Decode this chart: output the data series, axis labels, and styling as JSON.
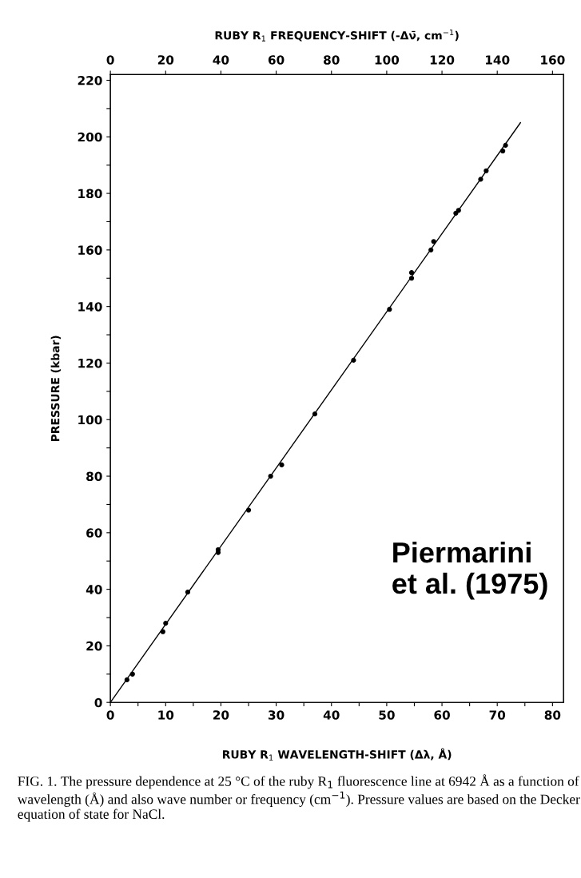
{
  "chart_data": {
    "type": "scatter",
    "xlabel": "RUBY R$_{1}$ WAVELENGTH-SHIFT (Δλ, Å)",
    "x2label": "RUBY R$_{1}$ FREQUENCY-SHIFT (-Δν̄, cm$^{−1}$)",
    "ylabel": "PRESSURE (kbar)",
    "xlim": [
      0,
      82
    ],
    "x2lim": [
      0,
      164
    ],
    "ylim": [
      0,
      222
    ],
    "xticks": [
      0,
      {
        "value": 5,
        "label": null
      },
      10,
      {
        "value": 15,
        "label": null
      },
      20,
      {
        "value": 25,
        "label": null
      },
      30,
      {
        "value": 35,
        "label": null
      },
      40,
      {
        "value": 45,
        "label": null
      },
      50,
      {
        "value": 55,
        "label": null
      },
      60,
      {
        "value": 65,
        "label": null
      },
      70,
      {
        "value": 75,
        "label": null
      },
      80
    ],
    "x2ticks": [
      0,
      20,
      40,
      60,
      80,
      100,
      120,
      140,
      160
    ],
    "yticks": [
      0,
      {
        "value": 10,
        "label": null
      },
      20,
      {
        "value": 30,
        "label": null
      },
      40,
      {
        "value": 50,
        "label": null
      },
      60,
      {
        "value": 70,
        "label": null
      },
      80,
      {
        "value": 90,
        "label": null
      },
      100,
      {
        "value": 110,
        "label": null
      },
      120,
      {
        "value": 130,
        "label": null
      },
      140,
      {
        "value": 150,
        "label": null
      },
      160,
      {
        "value": 170,
        "label": null
      },
      180,
      {
        "value": 190,
        "label": null
      },
      200,
      {
        "value": 210,
        "label": null
      },
      220
    ],
    "marker": "circle",
    "grid": false,
    "legend": false,
    "series": [
      {
        "color": "#000000",
        "x": [
          3,
          4,
          9.5,
          10,
          14,
          19.5,
          19.5,
          25,
          29,
          31,
          37,
          44,
          50.5,
          54.5,
          54.5,
          58,
          58.5,
          62.5,
          63,
          67,
          68,
          71,
          71.5
        ],
        "values": [
          8,
          10,
          25,
          28,
          39,
          53,
          54,
          68,
          80,
          84,
          102,
          121,
          139,
          150,
          152,
          160,
          163,
          173,
          174,
          185,
          188,
          195,
          197
        ]
      },
      {
        "type": "line",
        "color": "#000000",
        "line_style": "solid",
        "marker": "none",
        "x": [
          0,
          74.2
        ],
        "values": [
          0,
          205
        ]
      }
    ],
    "annotations": [
      "Piermarini\net al. (1975)",
      "FIG. 1. The pressure dependence at 25 °C of the ruby R$_{1}$ fluorescence line at 6942 Å as a function of wavelength (Å) and also wave number or frequency (cm$^{−1}$). Pressure values are based on the Decker equation of state for NaCl."
    ]
  }
}
